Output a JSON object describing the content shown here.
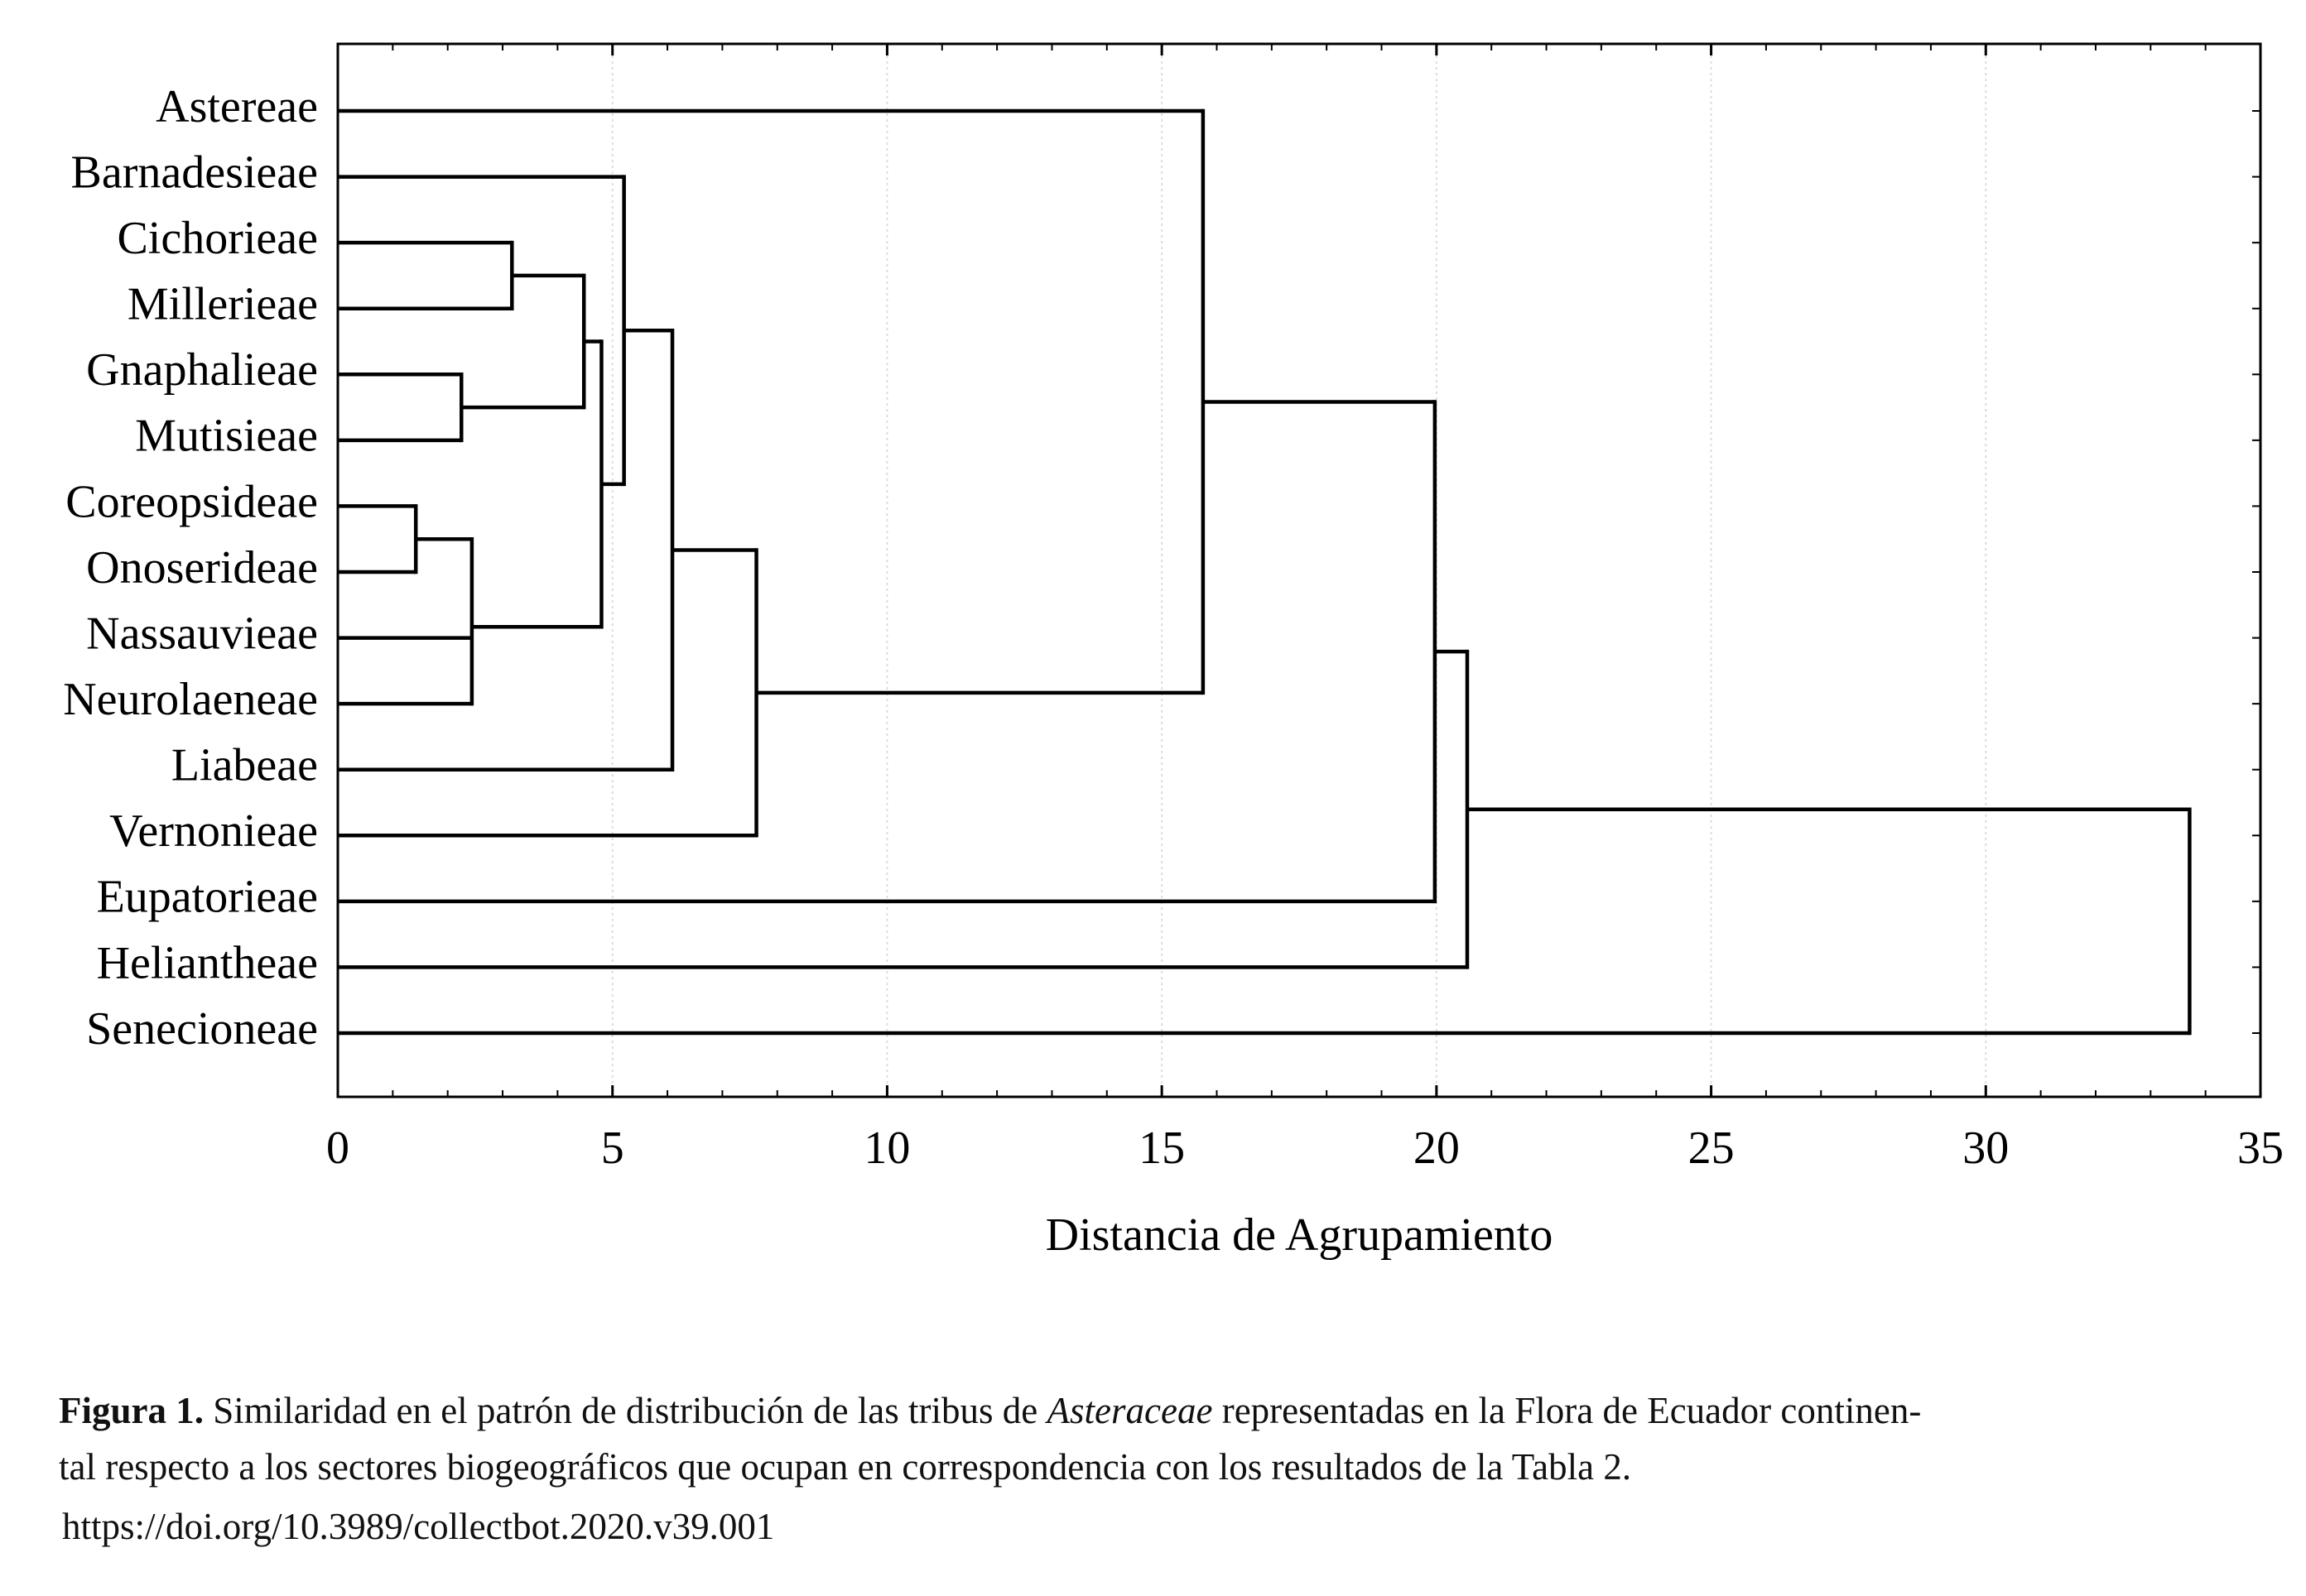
{
  "chart_data": {
    "type": "dendrogram",
    "x_label": "Distancia de Agrupamiento",
    "xlim": [
      0,
      35
    ],
    "xticks": [
      0,
      5,
      10,
      15,
      20,
      25,
      30,
      35
    ],
    "grid": true,
    "color": "#000000",
    "tree": {
      "height": 33.71,
      "children": [
        {
          "height": 20.56,
          "children": [
            {
              "height": 19.97,
              "children": [
                {
                  "height": 15.75,
                  "children": [
                    {
                      "label": "Astereae"
                    },
                    {
                      "height": 7.62,
                      "children": [
                        {
                          "height": 6.09,
                          "children": [
                            {
                              "height": 5.21,
                              "children": [
                                {
                                  "label": "Barnadesieae"
                                },
                                {
                                  "height": 4.8,
                                  "children": [
                                    {
                                      "height": 4.48,
                                      "children": [
                                        {
                                          "height": 3.17,
                                          "children": [
                                            {
                                              "label": "Cichorieae"
                                            },
                                            {
                                              "label": "Millerieae"
                                            }
                                          ]
                                        },
                                        {
                                          "height": 2.25,
                                          "children": [
                                            {
                                              "label": "Gnaphalieae"
                                            },
                                            {
                                              "label": "Mutisieae"
                                            }
                                          ]
                                        }
                                      ]
                                    },
                                    {
                                      "height": 2.44,
                                      "children": [
                                        {
                                          "height": 1.42,
                                          "children": [
                                            {
                                              "label": "Coreopsideae"
                                            },
                                            {
                                              "label": "Onoserideae"
                                            }
                                          ]
                                        },
                                        {
                                          "label": "Nassauvieae"
                                        },
                                        {
                                          "label": "Neurolaeneae"
                                        }
                                      ]
                                    }
                                  ]
                                }
                              ]
                            },
                            {
                              "label": "Liabeae"
                            }
                          ]
                        },
                        {
                          "label": "Vernonieae"
                        }
                      ]
                    }
                  ]
                },
                {
                  "label": "Eupatorieae"
                }
              ]
            },
            {
              "label": "Heliantheae"
            }
          ]
        },
        {
          "label": "Senecioneae"
        }
      ]
    }
  },
  "caption": {
    "label": "Figura 1.",
    "segments": [
      {
        "text": "Similaridad en el patrón de distribución de las tribus de"
      },
      {
        "text": "Asteraceae"
      },
      {
        "text": "representadas en la Flora de Ecuador continen-"
      }
    ],
    "line2": "tal respecto a los sectores biogeográficos que ocupan en correspondencia con los resultados de la Tabla 2.",
    "doi": "https://doi.org/10.3989/collectbot.2020.v39.001"
  }
}
